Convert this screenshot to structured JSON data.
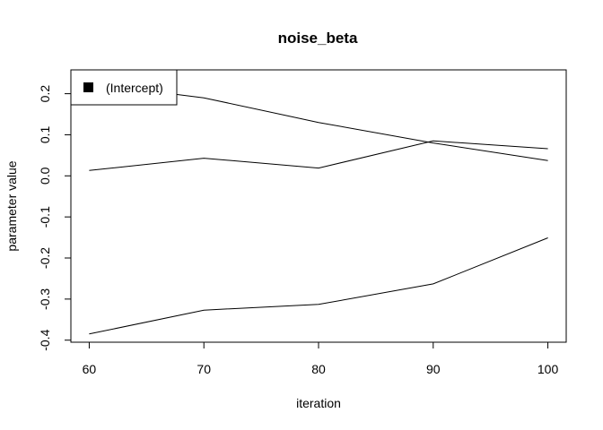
{
  "chart_data": {
    "type": "line",
    "title": "noise_beta",
    "xlabel": "iteration",
    "ylabel": "parameter value",
    "x": [
      60,
      70,
      80,
      90,
      100
    ],
    "x_ticks": [
      "60",
      "70",
      "80",
      "90",
      "100"
    ],
    "y_ticks": [
      "-0.4",
      "-0.3",
      "-0.2",
      "-0.1",
      "0.0",
      "0.1",
      "0.2"
    ],
    "xlim": [
      58.4,
      101.6
    ],
    "ylim": [
      -0.405,
      0.258
    ],
    "series": [
      {
        "values": [
          0.225,
          0.19,
          0.13,
          0.08,
          0.037
        ]
      },
      {
        "values": [
          0.013,
          0.043,
          0.019,
          0.085,
          0.066
        ]
      },
      {
        "values": [
          -0.385,
          -0.327,
          -0.313,
          -0.263,
          -0.151
        ]
      }
    ],
    "legend": {
      "position": "top-left",
      "entries": [
        "(Intercept)"
      ],
      "swatch_color": "#000000"
    },
    "line_color": "#000000",
    "grid": false
  }
}
